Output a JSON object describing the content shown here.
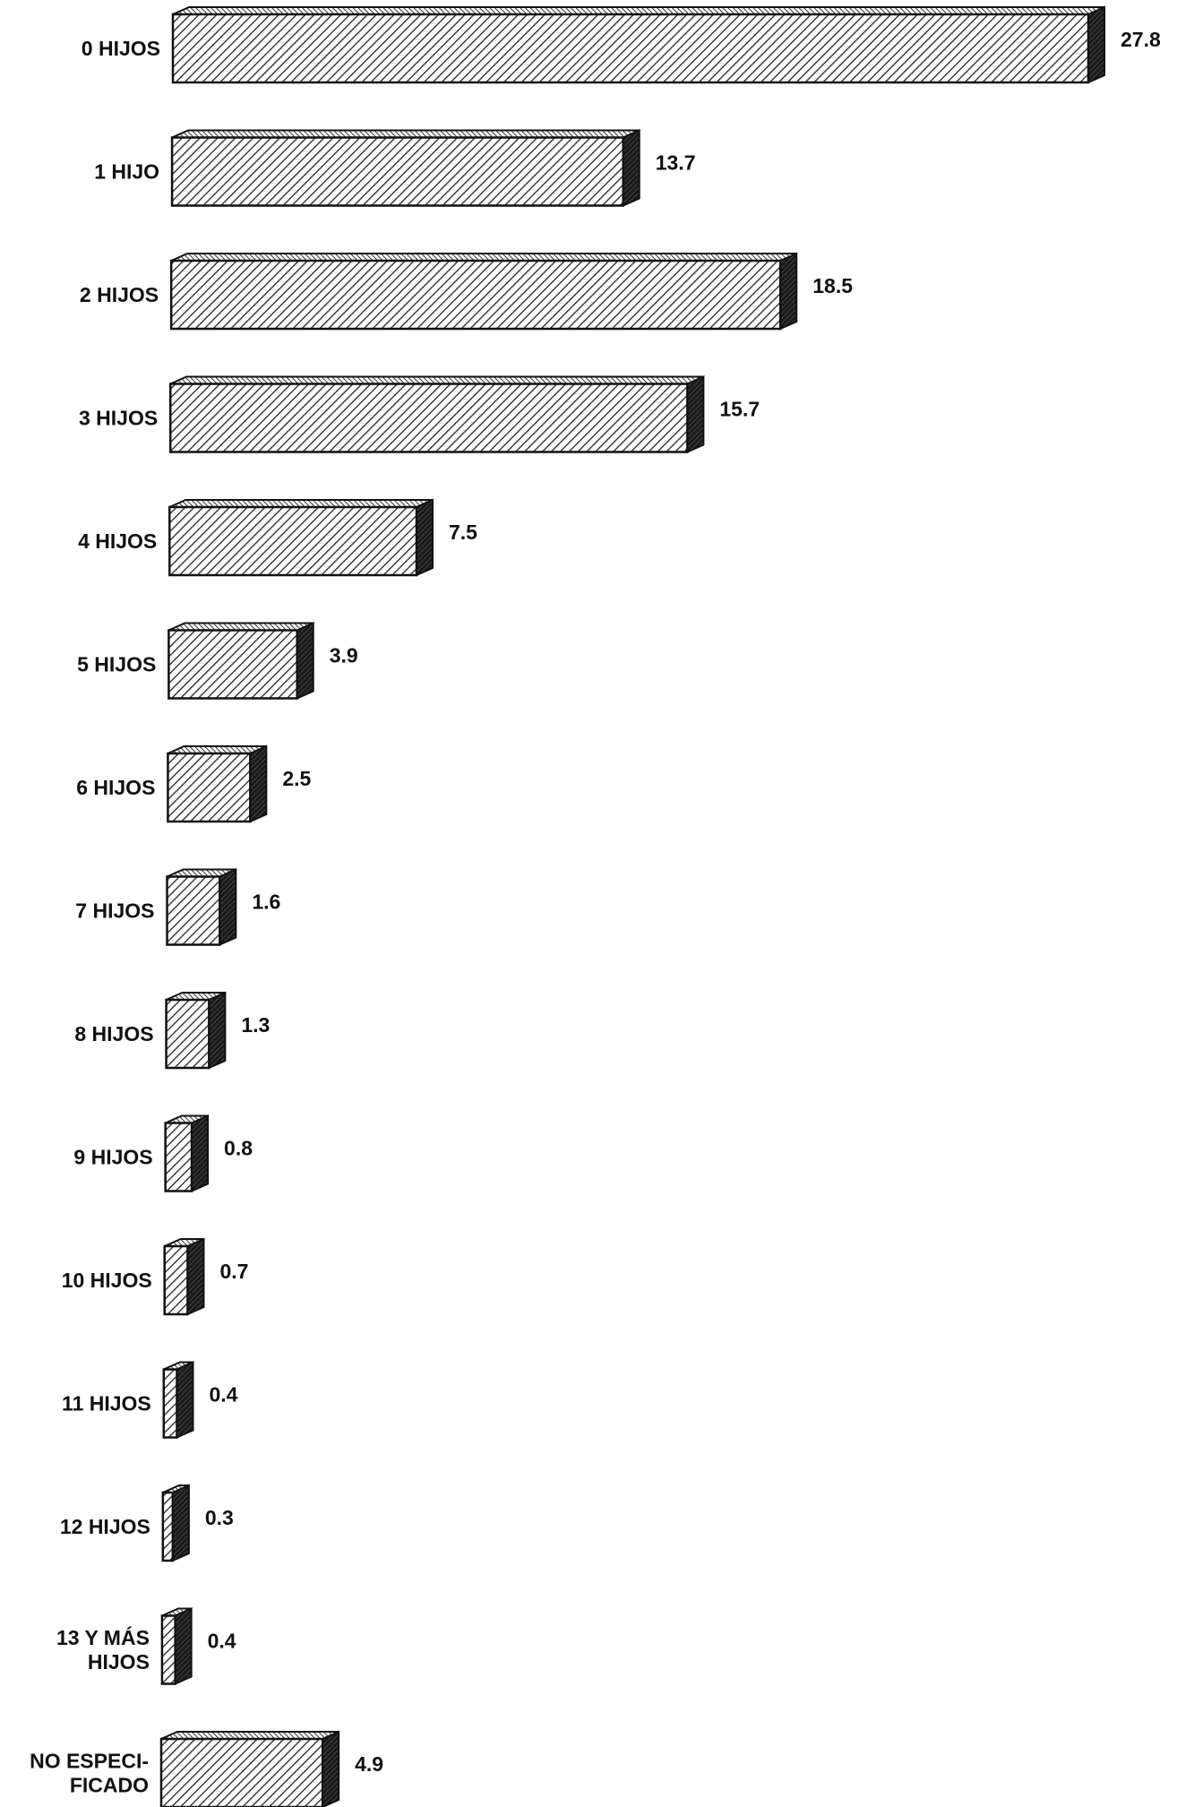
{
  "chart_data": {
    "type": "bar",
    "orientation": "horizontal",
    "categories": [
      "0 HIJOS",
      "1 HIJO",
      "2 HIJOS",
      "3 HIJOS",
      "4 HIJOS",
      "5 HIJOS",
      "6 HIJOS",
      "7 HIJOS",
      "8 HIJOS",
      "9 HIJOS",
      "10 HIJOS",
      "11 HIJOS",
      "12 HIJOS",
      "13 Y MÁS HIJOS",
      "NO ESPECIFICADO"
    ],
    "category_lines": [
      [
        "0 HIJOS"
      ],
      [
        "1 HIJO"
      ],
      [
        "2 HIJOS"
      ],
      [
        "3 HIJOS"
      ],
      [
        "4 HIJOS"
      ],
      [
        "5 HIJOS"
      ],
      [
        "6 HIJOS"
      ],
      [
        "7 HIJOS"
      ],
      [
        "8 HIJOS"
      ],
      [
        "9 HIJOS"
      ],
      [
        "10 HIJOS"
      ],
      [
        "11 HIJOS"
      ],
      [
        "12 HIJOS"
      ],
      [
        "13 Y MÁS",
        "HIJOS"
      ],
      [
        "NO ESPECI-",
        "FICADO"
      ]
    ],
    "values": [
      27.8,
      13.7,
      18.5,
      15.7,
      7.5,
      3.9,
      2.5,
      1.6,
      1.3,
      0.8,
      0.7,
      0.4,
      0.3,
      0.4,
      4.9
    ],
    "value_labels": [
      "27.8",
      "13.7",
      "18.5",
      "15.7",
      "7.5",
      "3.9",
      "2.5",
      "1.6",
      "1.3",
      "0.8",
      "0.7",
      "0.4",
      "0.3",
      "0.4",
      "4.9"
    ],
    "title": "",
    "xlabel": "",
    "ylabel": "",
    "xlim": [
      0,
      27.8
    ],
    "grid": false,
    "legend": "none",
    "bar_style": "3d-hatched",
    "colors": {
      "outline": "#111111",
      "hatch": "#222222",
      "face": "#ffffff",
      "side": "#1a1a1a",
      "top": "#555555"
    }
  }
}
